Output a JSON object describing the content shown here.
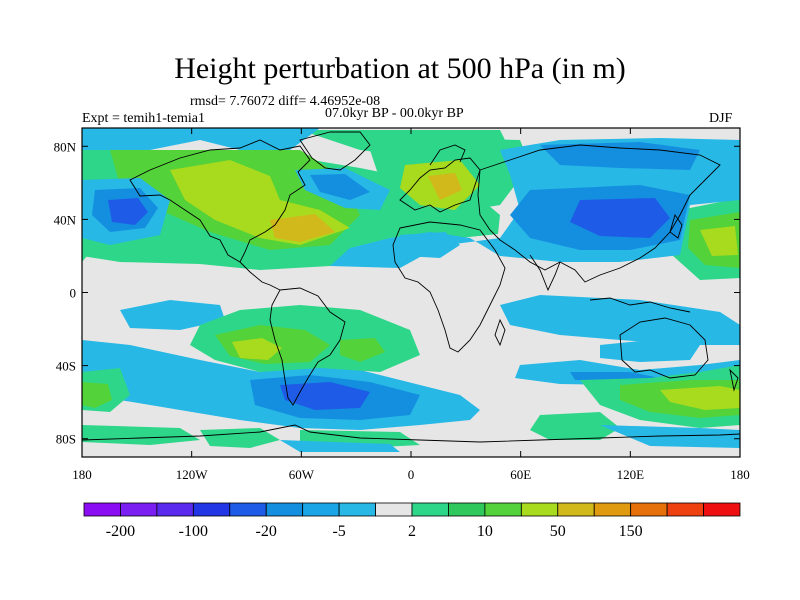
{
  "title": "Height perturbation at 500 hPa (in m)",
  "stats": "rmsd= 7.76072 diff= 4.46952e-08",
  "experiment": "Expt = temih1-temia1",
  "period": "07.0kyr BP - 00.0kyr BP",
  "season": "DJF",
  "colors": {
    "neutral": "#e6e6e6",
    "pos_2_5": "#2ed68a",
    "pos_5_10": "#53d23a",
    "pos_10_20": "#a8da1e",
    "pos_20_50": "#d2b91b",
    "neg_2_5": "#27b8e6",
    "neg_5_20": "#148fe0",
    "neg_20_50": "#1e5be6"
  },
  "map": {
    "projection": "cylindrical equidistant",
    "lon_range": [
      -180,
      180
    ],
    "lat_range": [
      -90,
      90
    ],
    "lon_ticks": [
      "180",
      "120W",
      "60W",
      "0",
      "60E",
      "120E",
      "180"
    ],
    "lat_ticks": [
      "80N",
      "40N",
      "0",
      "40S",
      "80S"
    ]
  },
  "colorbar": {
    "colors": [
      "#8a0cf2",
      "#7a1ef2",
      "#5a2bee",
      "#2336e6",
      "#1e5be6",
      "#148fe0",
      "#1aa6e6",
      "#27b8e6",
      "#e6e6e6",
      "#2ed68a",
      "#2ec85c",
      "#53d23a",
      "#a8da1e",
      "#d2b91b",
      "#e09a10",
      "#e6700a",
      "#ef4010",
      "#ee1010"
    ],
    "labels": [
      "-200",
      "-100",
      "-20",
      "-5",
      "2",
      "10",
      "50",
      "150"
    ]
  }
}
